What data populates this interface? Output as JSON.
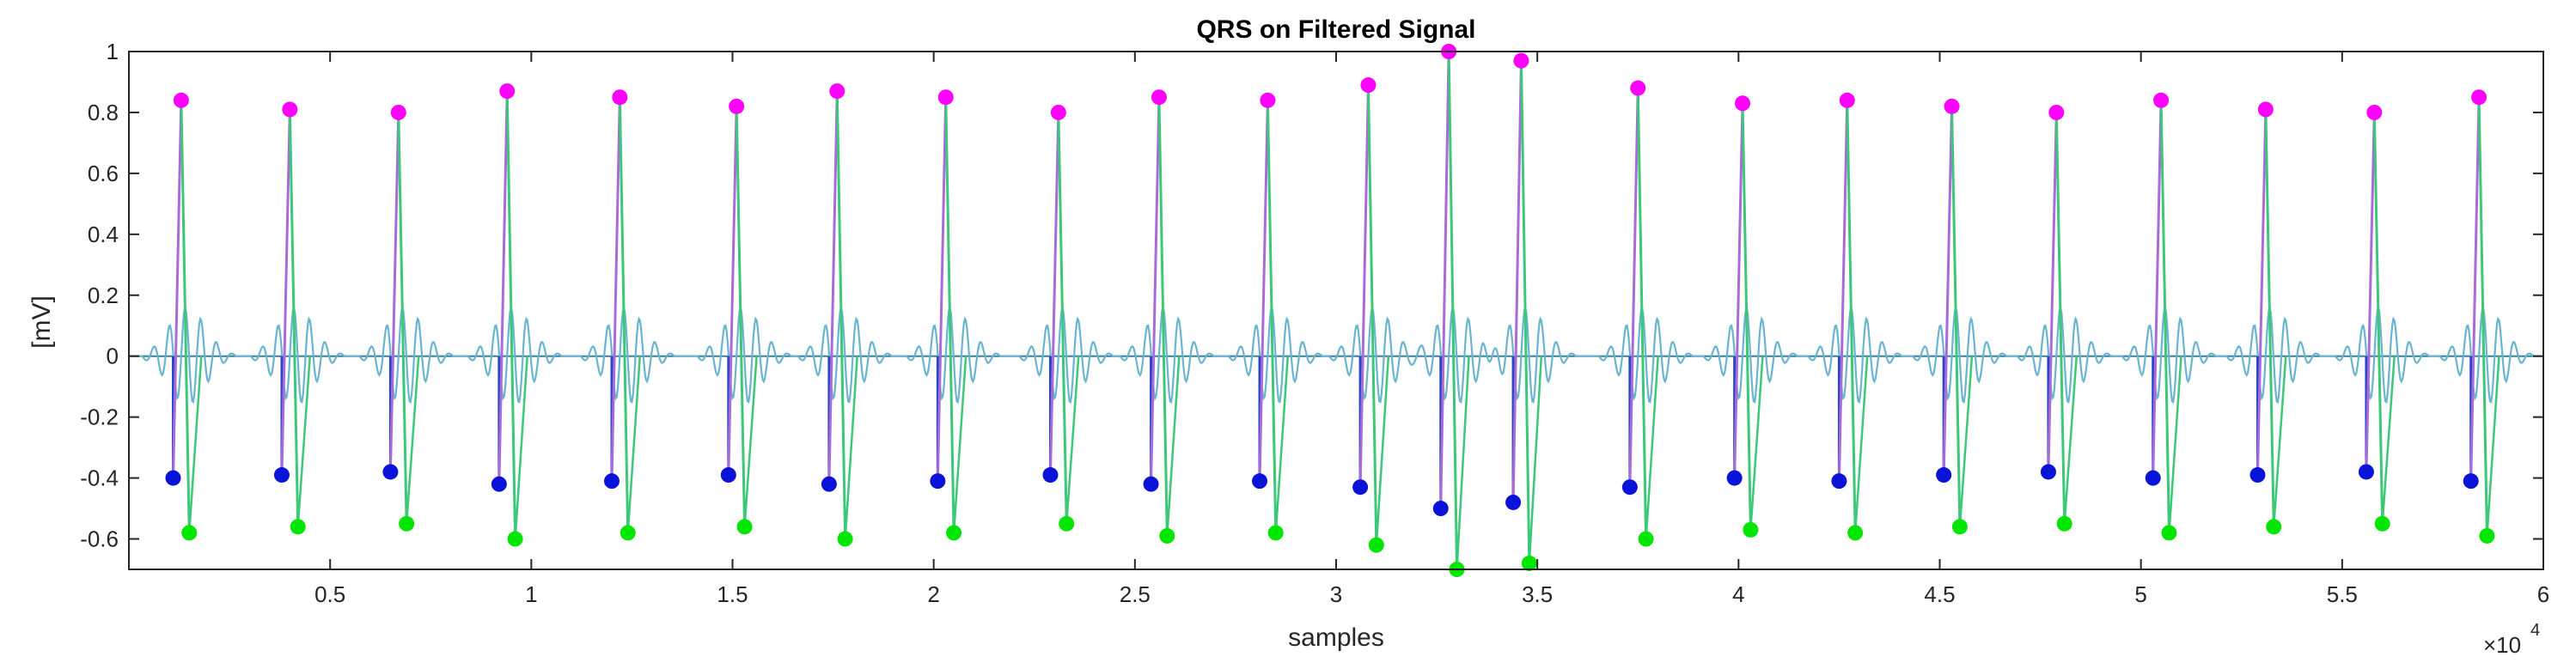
{
  "chart_data": {
    "type": "line",
    "title": "QRS on Filtered Signal",
    "xlabel": "samples",
    "ylabel": "[mV]",
    "xlim": [
      0,
      60000
    ],
    "ylim": [
      -0.7,
      1.0
    ],
    "x_exponent_label": "×10",
    "x_exponent_power": "4",
    "x_ticks": [
      0.5,
      1,
      1.5,
      2,
      2.5,
      3,
      3.5,
      4,
      4.5,
      5,
      5.5,
      6
    ],
    "x_tick_labels": [
      "0.5",
      "1",
      "1.5",
      "2",
      "2.5",
      "3",
      "3.5",
      "4",
      "4.5",
      "5",
      "5.5",
      "6"
    ],
    "y_ticks": [
      1,
      0.8,
      0.6,
      0.4,
      0.2,
      0,
      -0.2,
      -0.4,
      -0.6
    ],
    "y_tick_labels": [
      "1",
      "0.8",
      "0.6",
      "0.4",
      "0.2",
      "0",
      "-0.2",
      "-0.4",
      "-0.6"
    ],
    "grid": false,
    "colors": {
      "signal": "#6bb4cf",
      "baseline": "#3b7f96",
      "r_peak": "#ff00ff",
      "r_line": "#a96bd9",
      "q_point": "#0a14d8",
      "q_line": "#2a46c8",
      "s_point": "#00e600",
      "s_line": "#3cc878",
      "axis": "#262626"
    },
    "series": [
      {
        "name": "R peaks",
        "x": [
          1300,
          4000,
          6700,
          9400,
          12200,
          15100,
          17600,
          20300,
          23100,
          25600,
          28300,
          30800,
          32800,
          34600,
          37500,
          40100,
          42700,
          45300,
          47900,
          50500,
          53100,
          55800,
          58400
        ],
        "values": [
          0.84,
          0.81,
          0.8,
          0.87,
          0.85,
          0.82,
          0.87,
          0.85,
          0.8,
          0.85,
          0.84,
          0.89,
          1.0,
          0.97,
          0.88,
          0.83,
          0.84,
          0.82,
          0.8,
          0.84,
          0.81,
          0.8,
          0.85
        ]
      },
      {
        "name": "Q points",
        "x": [
          1100,
          3800,
          6500,
          9200,
          12000,
          14900,
          17400,
          20100,
          22900,
          25400,
          28100,
          30600,
          32600,
          34400,
          37300,
          39900,
          42500,
          45100,
          47700,
          50300,
          52900,
          55600,
          58200
        ],
        "values": [
          -0.4,
          -0.39,
          -0.38,
          -0.42,
          -0.41,
          -0.39,
          -0.42,
          -0.41,
          -0.39,
          -0.42,
          -0.41,
          -0.43,
          -0.5,
          -0.48,
          -0.43,
          -0.4,
          -0.41,
          -0.39,
          -0.38,
          -0.4,
          -0.39,
          -0.38,
          -0.41
        ]
      },
      {
        "name": "S points",
        "x": [
          1500,
          4200,
          6900,
          9600,
          12400,
          15300,
          17800,
          20500,
          23300,
          25800,
          28500,
          31000,
          33000,
          34800,
          37700,
          40300,
          42900,
          45500,
          48100,
          50700,
          53300,
          56000,
          58600
        ],
        "values": [
          -0.58,
          -0.56,
          -0.55,
          -0.6,
          -0.58,
          -0.56,
          -0.6,
          -0.58,
          -0.55,
          -0.59,
          -0.58,
          -0.62,
          -0.7,
          -0.68,
          -0.6,
          -0.57,
          -0.58,
          -0.56,
          -0.55,
          -0.58,
          -0.56,
          -0.55,
          -0.59
        ]
      }
    ]
  }
}
